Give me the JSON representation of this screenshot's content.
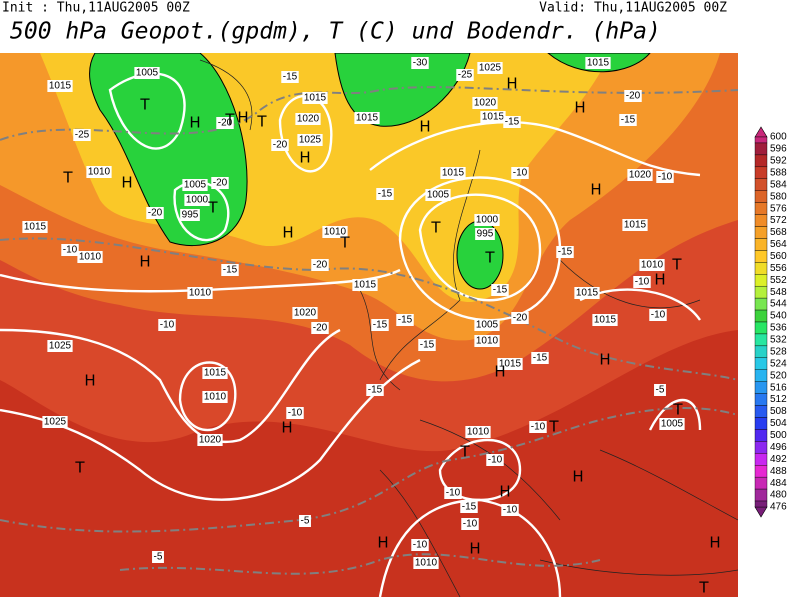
{
  "header": {
    "init": "Init : Thu,11AUG2005 00Z",
    "valid": "Valid: Thu,11AUG2005 00Z",
    "title": "500 hPa Geopot.(gpdm), T (C) und Bodendr. (hPa)"
  },
  "colorbar": {
    "levels": [
      600,
      596,
      592,
      588,
      584,
      580,
      576,
      572,
      568,
      564,
      560,
      556,
      552,
      548,
      544,
      540,
      536,
      532,
      528,
      524,
      520,
      516,
      512,
      508,
      504,
      500,
      496,
      492,
      488,
      484,
      480,
      476
    ],
    "colors": [
      "#c8287a",
      "#a01e3c",
      "#b42828",
      "#c83c28",
      "#d2502a",
      "#dc6428",
      "#e67828",
      "#f08c28",
      "#f5a028",
      "#fab428",
      "#ffc828",
      "#f0dc28",
      "#dcf028",
      "#b4f03c",
      "#78e650",
      "#3cd23c",
      "#28e664",
      "#28e6a0",
      "#28d2c8",
      "#28c8e6",
      "#28b4f0",
      "#2896f0",
      "#2878f0",
      "#285af0",
      "#283cf0",
      "#5028f0",
      "#8c28f0",
      "#c828f0",
      "#e628d2",
      "#c828b4",
      "#a0289b",
      "#781e78"
    ]
  },
  "map_labels": [
    "1015",
    "1005",
    "-25",
    "1010",
    "1005",
    "1000",
    "995",
    "-20",
    "-20",
    "-10",
    "1015",
    "1010",
    "1010",
    "-10",
    "1025",
    "1015",
    "1010",
    "1025",
    "1020",
    "-10",
    "1020",
    "-20",
    "-15",
    "-20",
    "1015",
    "1010",
    "1015",
    "1020",
    "1025",
    "-20",
    "-20",
    "-15",
    "1015",
    "-30",
    "-25",
    "1025",
    "1020",
    "1015",
    "-15",
    "1015",
    "-20",
    "-15",
    "1020",
    "-10",
    "1015",
    "1010",
    "-10",
    "1015",
    "1015",
    "-10",
    "-15",
    "1015",
    "1005",
    "-10",
    "1000",
    "995",
    "-15",
    "1005",
    "-20",
    "1010",
    "-15",
    "-15",
    "-15",
    "1015",
    "-15",
    "-15",
    "-15",
    "-10",
    "1010",
    "-10",
    "-10",
    "-15",
    "-10",
    "-10",
    "-5",
    "1005",
    "-10",
    "1010",
    "-5",
    "-5"
  ],
  "pressure_centers": [
    "T",
    "H",
    "T",
    "H",
    "T",
    "H",
    "T",
    "H",
    "T",
    "H",
    "T",
    "H",
    "H",
    "H",
    "H",
    "H",
    "T",
    "T",
    "T",
    "H",
    "H",
    "H",
    "H",
    "H",
    "T",
    "T",
    "T",
    "H",
    "H",
    "T",
    "H",
    "H",
    "H",
    "T"
  ]
}
